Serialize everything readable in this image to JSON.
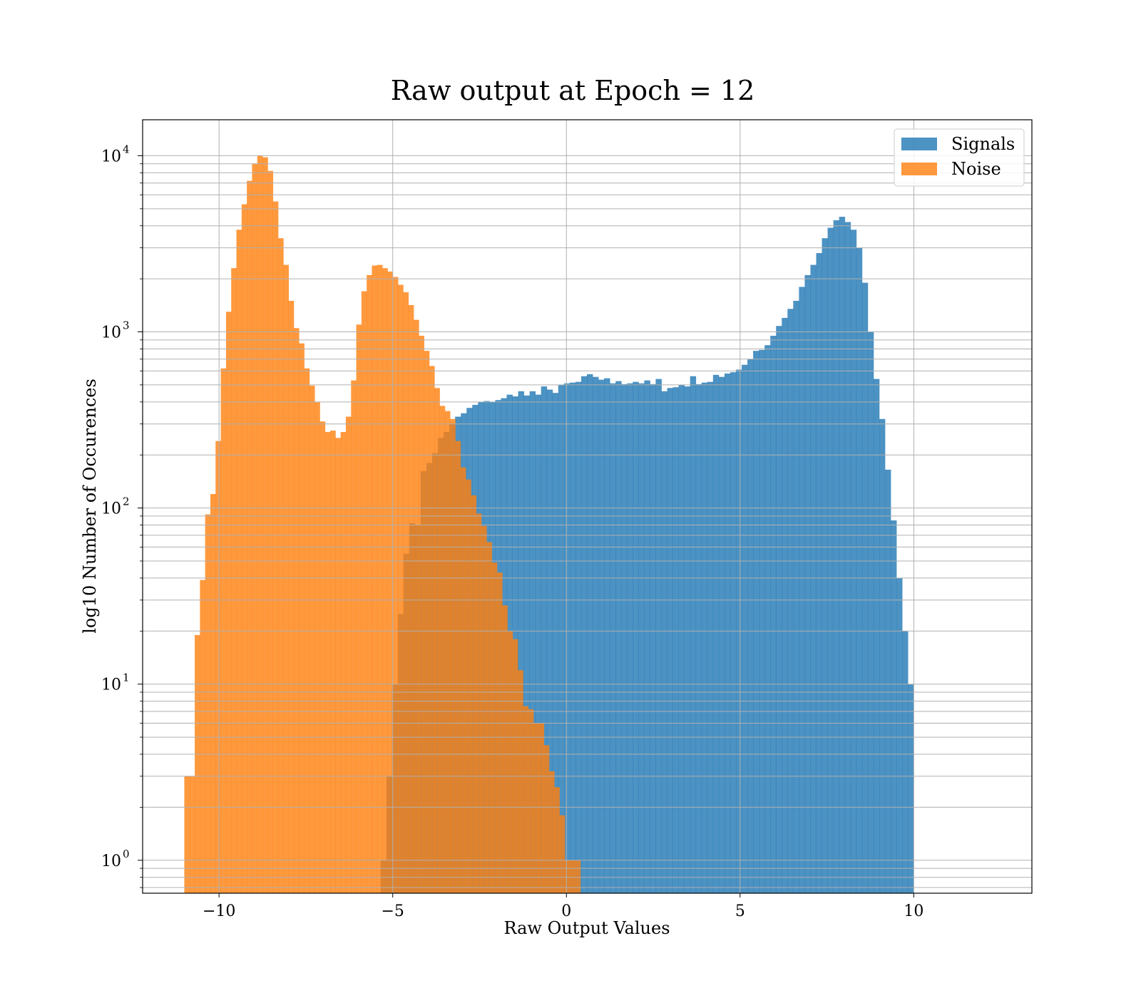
{
  "chart_data": {
    "type": "bar",
    "title": "Raw output at Epoch = 12",
    "xlabel": "Raw Output Values",
    "ylabel": "log10 Number of Occurences",
    "xlim": [
      -12.2,
      13.4
    ],
    "ylim": [
      0.65,
      16000
    ],
    "yscale": "log",
    "grid": true,
    "legend_position": "top-right",
    "xticks": [
      -10,
      -5,
      0,
      5,
      10
    ],
    "xtick_labels": [
      "−10",
      "−5",
      "0",
      "5",
      "10"
    ],
    "yticks": [
      1,
      10,
      100,
      1000,
      10000
    ],
    "ytick_bases": [
      "10",
      "10",
      "10",
      "10",
      "10"
    ],
    "ytick_exponents": [
      "0",
      "1",
      "2",
      "3",
      "4"
    ],
    "series": [
      {
        "name": "Signals",
        "color": "#1f77b4",
        "opacity": 0.8,
        "bin_start": -5.35,
        "bin_width": 0.165,
        "values": [
          1,
          3,
          10,
          25,
          55,
          82,
          80,
          162,
          180,
          205,
          250,
          270,
          300,
          330,
          345,
          370,
          385,
          400,
          405,
          400,
          410,
          420,
          440,
          430,
          460,
          435,
          460,
          440,
          490,
          470,
          450,
          500,
          510,
          515,
          520,
          560,
          575,
          555,
          535,
          545,
          510,
          525,
          505,
          510,
          520,
          510,
          530,
          505,
          540,
          460,
          480,
          485,
          500,
          490,
          560,
          505,
          515,
          520,
          570,
          555,
          580,
          590,
          610,
          650,
          700,
          780,
          790,
          840,
          950,
          1080,
          1200,
          1350,
          1500,
          1800,
          2100,
          2400,
          2800,
          3400,
          3900,
          4300,
          4500,
          4200,
          3800,
          3000,
          1900,
          1000,
          540,
          320,
          165,
          85,
          40,
          20,
          10
        ]
      },
      {
        "name": "Noise",
        "color": "#ff7f0e",
        "opacity": 0.8,
        "bin_start": -11.0,
        "bin_width": 0.15,
        "values": [
          3,
          3,
          19,
          39,
          92,
          120,
          240,
          620,
          1300,
          2300,
          3800,
          5300,
          7200,
          9000,
          10000,
          9800,
          8200,
          5500,
          3400,
          2400,
          1500,
          1050,
          860,
          620,
          495,
          400,
          310,
          270,
          275,
          250,
          270,
          330,
          530,
          1100,
          1700,
          2100,
          2380,
          2400,
          2300,
          2200,
          2050,
          1850,
          1680,
          1420,
          1170,
          950,
          780,
          640,
          480,
          380,
          355,
          320,
          240,
          170,
          145,
          118,
          93,
          79,
          64,
          49,
          43,
          28,
          20,
          18,
          12,
          7.5,
          7.2,
          6,
          6,
          4.5,
          3.2,
          2.6,
          1.8,
          1,
          1,
          1
        ]
      }
    ]
  }
}
